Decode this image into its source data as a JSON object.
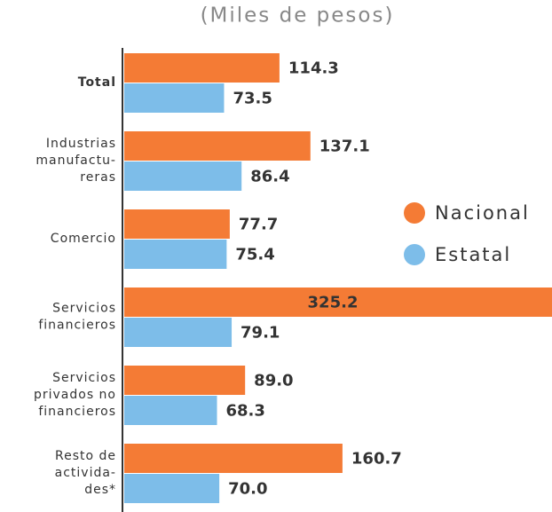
{
  "chart_data": {
    "type": "bar",
    "orientation": "horizontal",
    "subtitle": "(Miles de pesos)",
    "categories": [
      [
        "Total"
      ],
      [
        "Industrias",
        "manufactu-",
        "reras"
      ],
      [
        "Comercio"
      ],
      [
        "Servicios",
        "financieros"
      ],
      [
        "Servicios",
        "privados no",
        "financieros"
      ],
      [
        "Resto de",
        "activida-",
        "des*"
      ]
    ],
    "series": [
      {
        "name": "Nacional",
        "color": "#f47b35",
        "values": [
          114.3,
          137.1,
          77.7,
          325.2,
          89.0,
          160.7
        ],
        "value_labels": [
          "114.3",
          "137.1",
          "77.7",
          "325.2",
          "89.0",
          "160.7"
        ]
      },
      {
        "name": "Estatal",
        "color": "#7dbde9",
        "values": [
          73.5,
          86.4,
          75.4,
          79.1,
          68.3,
          70.0
        ],
        "value_labels": [
          "73.5",
          "86.4",
          "75.4",
          "79.1",
          "68.3",
          "70.0"
        ]
      }
    ],
    "xlim": [
      0,
      315
    ],
    "legend": "right"
  }
}
